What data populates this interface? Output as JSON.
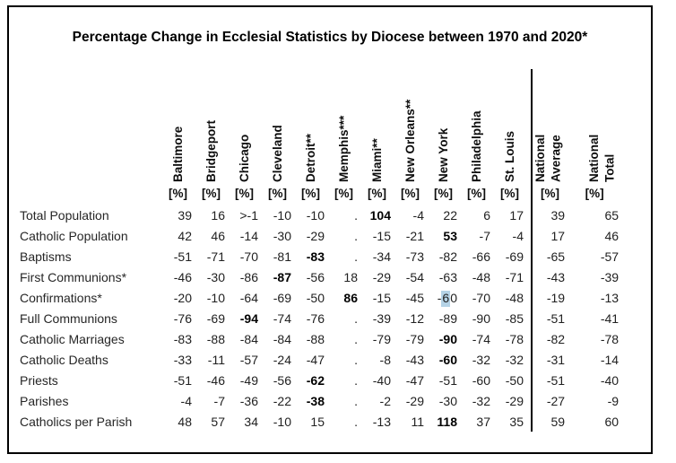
{
  "title": "Percentage Change in Ecclesial Statistics by Diocese between 1970 and 2020*",
  "colors": {
    "frame_border": "#000000",
    "text": "#212121",
    "selection_highlight": "#b5d3e6"
  },
  "chart_data": {
    "type": "table",
    "title": "Percentage Change in Ecclesial Statistics by Diocese between 1970 and 2020*",
    "unit_label": "[%]",
    "columns": [
      {
        "name": "Baltimore",
        "rotated_label": "Baltimore"
      },
      {
        "name": "Bridgeport",
        "rotated_label": "Bridgeport"
      },
      {
        "name": "Chicago",
        "rotated_label": "Chicago"
      },
      {
        "name": "Cleveland",
        "rotated_label": "Cleveland"
      },
      {
        "name": "Detroit**",
        "rotated_label": "Detroit**"
      },
      {
        "name": "Memphis***",
        "rotated_label": "Memphis***"
      },
      {
        "name": "Miami**",
        "rotated_label": "Miami**"
      },
      {
        "name": "New Orleans**",
        "rotated_label": "New Orleans**"
      },
      {
        "name": "New York",
        "rotated_label": "New York"
      },
      {
        "name": "Philadelphia",
        "rotated_label": "Philadelphia"
      },
      {
        "name": "St. Louis",
        "rotated_label": "St. Louis"
      },
      {
        "name": "National Average",
        "rotated_label": "National\nAverage",
        "national": true
      },
      {
        "name": "National Total",
        "rotated_label": "National\nTotal",
        "national": true
      }
    ],
    "divider_after_column": "St. Louis",
    "rows": [
      {
        "label": "Total Population",
        "values": [
          "39",
          "16",
          ">-1",
          "-10",
          "-10",
          ".",
          "104",
          "-4",
          "22",
          "6",
          "17",
          "39",
          "65"
        ],
        "bold_col": 6
      },
      {
        "label": "Catholic Population",
        "values": [
          "42",
          "46",
          "-14",
          "-30",
          "-29",
          ".",
          "-15",
          "-21",
          "53",
          "-7",
          "-4",
          "17",
          "46"
        ],
        "bold_col": 8
      },
      {
        "label": "Baptisms",
        "values": [
          "-51",
          "-71",
          "-70",
          "-81",
          "-83",
          ".",
          "-34",
          "-73",
          "-82",
          "-66",
          "-69",
          "-65",
          "-57"
        ],
        "bold_col": 4
      },
      {
        "label": "First Communions*",
        "values": [
          "-46",
          "-30",
          "-86",
          "-87",
          "-56",
          "18",
          "-29",
          "-54",
          "-63",
          "-48",
          "-71",
          "-43",
          "-39"
        ],
        "bold_col": 3
      },
      {
        "label": "Confirmations*",
        "values": [
          "-20",
          "-10",
          "-64",
          "-69",
          "-50",
          "86",
          "-15",
          "-45",
          "-60",
          "-70",
          "-48",
          "-19",
          "-13"
        ],
        "bold_col": 5
      },
      {
        "label": "Full Communions",
        "values": [
          "-76",
          "-69",
          "-94",
          "-74",
          "-76",
          ".",
          "-39",
          "-12",
          "-89",
          "-90",
          "-85",
          "-51",
          "-41"
        ],
        "bold_col": 2
      },
      {
        "label": "Catholic Marriages",
        "values": [
          "-83",
          "-88",
          "-84",
          "-84",
          "-88",
          ".",
          "-79",
          "-79",
          "-90",
          "-74",
          "-78",
          "-82",
          "-78"
        ],
        "bold_col": 8
      },
      {
        "label": "Catholic Deaths",
        "values": [
          "-33",
          "-11",
          "-57",
          "-24",
          "-47",
          ".",
          "-8",
          "-43",
          "-60",
          "-32",
          "-32",
          "-31",
          "-14"
        ],
        "bold_col": 8
      },
      {
        "label": "Priests",
        "values": [
          "-51",
          "-46",
          "-49",
          "-56",
          "-62",
          ".",
          "-40",
          "-47",
          "-51",
          "-60",
          "-50",
          "-51",
          "-40"
        ],
        "bold_col": 4
      },
      {
        "label": "Parishes",
        "values": [
          "-4",
          "-7",
          "-36",
          "-22",
          "-38",
          ".",
          "-2",
          "-29",
          "-30",
          "-32",
          "-29",
          "-27",
          "-9"
        ],
        "bold_col": 4
      },
      {
        "label": "Catholics per Parish",
        "values": [
          "48",
          "57",
          "34",
          "-10",
          "15",
          ".",
          "-13",
          "11",
          "118",
          "37",
          "35",
          "59",
          "60"
        ],
        "bold_col": 8
      }
    ],
    "highlight": {
      "row_index": 4,
      "col_index": 8,
      "char_index": 1,
      "color": "#b5d3e6"
    }
  }
}
